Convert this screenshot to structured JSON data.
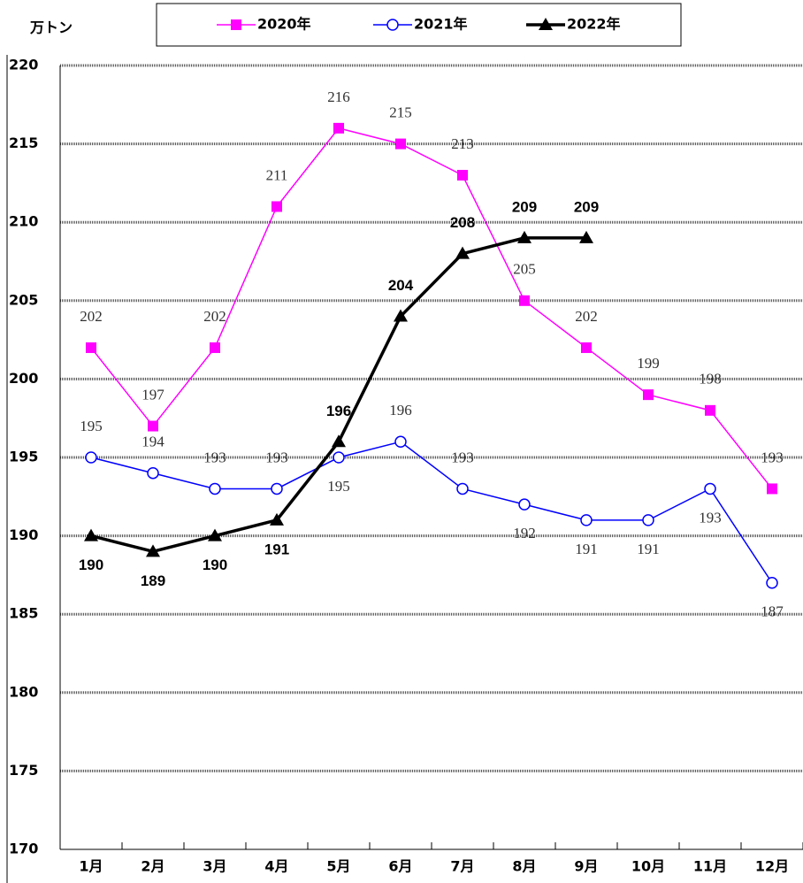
{
  "chart_data": {
    "type": "line",
    "y_label": "万トン",
    "categories": [
      "1月",
      "2月",
      "3月",
      "4月",
      "5月",
      "6月",
      "7月",
      "8月",
      "9月",
      "10月",
      "11月",
      "12月"
    ],
    "series": [
      {
        "name": "2020年",
        "color": "#ff00ff",
        "marker": "square",
        "values": [
          202,
          197,
          202,
          211,
          216,
          215,
          213,
          205,
          202,
          199,
          198,
          193
        ]
      },
      {
        "name": "2021年",
        "color": "#0000ff",
        "marker": "circle",
        "values": [
          195,
          194,
          193,
          193,
          195,
          196,
          193,
          192,
          191,
          191,
          193,
          187
        ]
      },
      {
        "name": "2022年",
        "color": "#000000",
        "marker": "triangle",
        "values": [
          190,
          189,
          190,
          191,
          196,
          204,
          208,
          209,
          209,
          null,
          null,
          null
        ]
      }
    ],
    "ylim": [
      170,
      220
    ],
    "yticks": [
      170,
      175,
      180,
      185,
      190,
      195,
      200,
      205,
      210,
      215,
      220
    ],
    "grid": true
  }
}
